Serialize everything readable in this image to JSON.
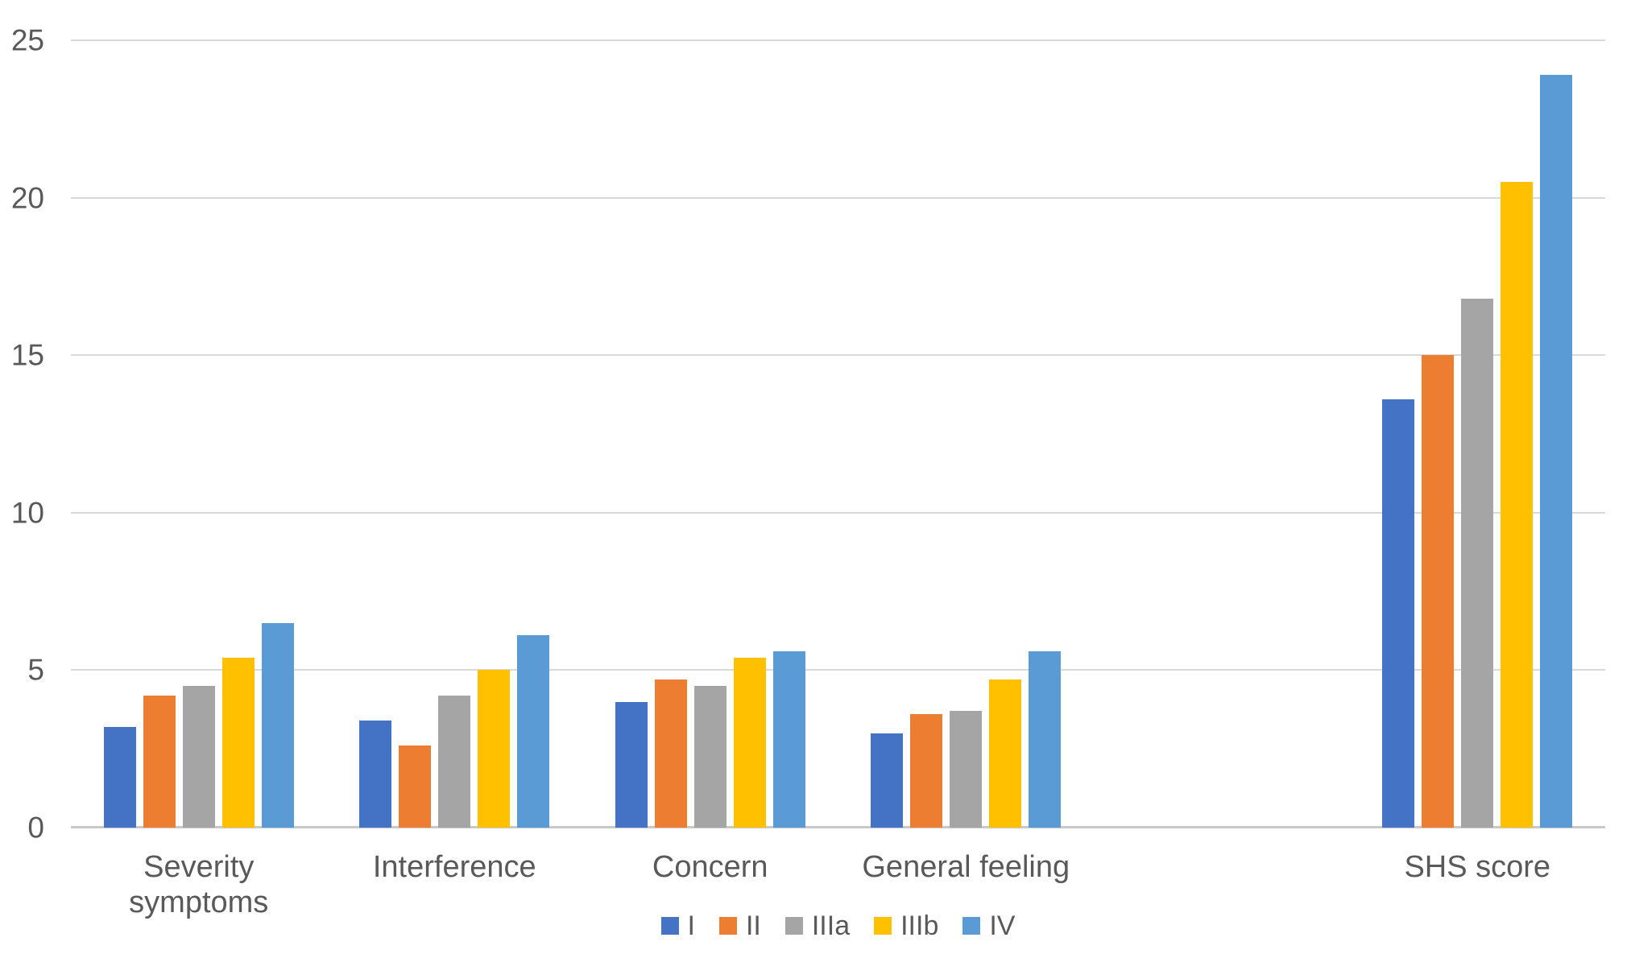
{
  "chart_data": {
    "type": "bar",
    "title": "",
    "categories": [
      "Severity symptoms",
      "Interference",
      "Concern",
      "General feeling",
      "SHS score"
    ],
    "series": [
      {
        "name": "I",
        "color": "#4472C4",
        "values": [
          3.2,
          3.4,
          4.0,
          3.0,
          13.6
        ]
      },
      {
        "name": "II",
        "color": "#ED7D31",
        "values": [
          4.2,
          2.6,
          4.7,
          3.6,
          15.0
        ]
      },
      {
        "name": "IIIa",
        "color": "#A5A5A5",
        "values": [
          4.5,
          4.2,
          4.5,
          3.7,
          16.8
        ]
      },
      {
        "name": "IIIb",
        "color": "#FFC000",
        "values": [
          5.4,
          5.0,
          5.4,
          4.7,
          20.5
        ]
      },
      {
        "name": "IV",
        "color": "#5B9BD5",
        "values": [
          6.5,
          6.1,
          5.6,
          5.6,
          23.9
        ]
      }
    ],
    "xlabel": "",
    "ylabel": "",
    "ylim": [
      0,
      25
    ],
    "yticks": [
      0,
      5,
      10,
      15,
      20,
      25
    ],
    "grid": true,
    "legend_position": "bottom",
    "category_slot_count": 6,
    "category_slot_indices": [
      0,
      1,
      2,
      3,
      5
    ],
    "grid_color": "#D9D9D9",
    "axis_line_color": "#C9C9C9",
    "text_color": "#595959",
    "background": "#FFFFFF"
  }
}
